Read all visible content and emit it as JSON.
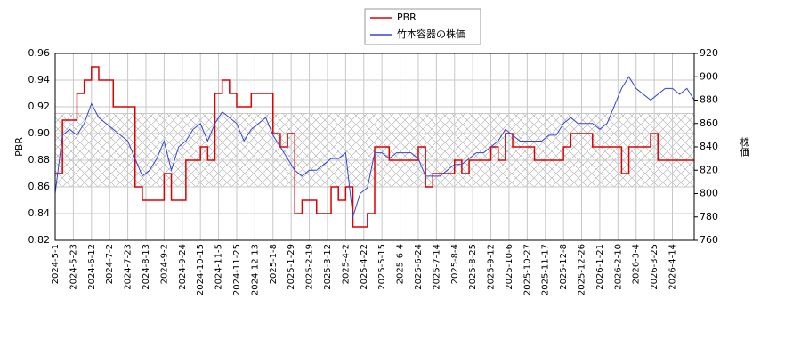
{
  "chart_data": {
    "type": "line",
    "ylabel": "PBR",
    "y2label": "株価",
    "x": [
      0,
      6,
      12,
      18,
      24,
      30,
      36,
      42,
      48,
      54,
      60,
      66,
      72,
      78,
      84,
      90,
      96,
      102,
      108,
      114,
      120,
      126,
      132,
      138,
      144,
      150,
      156,
      162,
      168,
      174,
      180,
      186,
      192,
      198,
      204,
      210,
      216,
      222,
      228,
      234,
      240,
      246,
      252,
      258,
      264,
      270,
      276,
      282,
      288,
      294,
      300,
      306,
      312,
      318,
      324,
      330,
      336,
      342,
      348,
      354,
      360,
      366,
      372,
      378,
      384,
      390,
      396,
      402,
      408,
      414,
      420,
      426,
      432,
      438,
      444,
      450,
      456,
      462,
      468,
      474,
      480,
      486,
      492,
      498,
      504,
      510,
      516,
      522,
      528
    ],
    "xlim": [
      0,
      528
    ],
    "xticks": [
      {
        "value": 0,
        "label": "2024-5-1"
      },
      {
        "value": 15,
        "label": "2024-5-23"
      },
      {
        "value": 30,
        "label": "2024-6-12"
      },
      {
        "value": 45,
        "label": "2024-7-2"
      },
      {
        "value": 60,
        "label": "2024-7-23"
      },
      {
        "value": 75,
        "label": "2024-8-13"
      },
      {
        "value": 90,
        "label": "2024-9-2"
      },
      {
        "value": 105,
        "label": "2024-9-24"
      },
      {
        "value": 120,
        "label": "2024-10-15"
      },
      {
        "value": 135,
        "label": "2024-11-5"
      },
      {
        "value": 150,
        "label": "2024-11-25"
      },
      {
        "value": 165,
        "label": "2024-12-13"
      },
      {
        "value": 180,
        "label": "2025-1-8"
      },
      {
        "value": 195,
        "label": "2025-1-29"
      },
      {
        "value": 210,
        "label": "2025-2-19"
      },
      {
        "value": 225,
        "label": "2025-3-12"
      },
      {
        "value": 240,
        "label": "2025-4-2"
      },
      {
        "value": 255,
        "label": "2025-4-22"
      },
      {
        "value": 270,
        "label": "2025-5-15"
      },
      {
        "value": 285,
        "label": "2025-6-4"
      },
      {
        "value": 300,
        "label": "2025-6-24"
      },
      {
        "value": 315,
        "label": "2025-7-14"
      },
      {
        "value": 330,
        "label": "2025-8-4"
      },
      {
        "value": 345,
        "label": "2025-8-25"
      },
      {
        "value": 360,
        "label": "2025-9-12"
      },
      {
        "value": 375,
        "label": "2025-10-6"
      },
      {
        "value": 390,
        "label": "2025-10-27"
      },
      {
        "value": 405,
        "label": "2025-11-17"
      },
      {
        "value": 420,
        "label": "2025-12-8"
      },
      {
        "value": 435,
        "label": "2025-12-26"
      },
      {
        "value": 450,
        "label": "2026-1-21"
      },
      {
        "value": 465,
        "label": "2026-2-10"
      },
      {
        "value": 480,
        "label": "2026-3-4"
      },
      {
        "value": 495,
        "label": "2026-3-25"
      },
      {
        "value": 510,
        "label": "2026-4-14"
      }
    ],
    "ylim": [
      0.82,
      0.96
    ],
    "yticks": [
      0.82,
      0.84,
      0.86,
      0.88,
      {
        "value": 0.9,
        "label": "0.90"
      },
      0.92,
      0.94,
      0.96
    ],
    "y2lim": [
      760,
      920
    ],
    "y2ticks": [
      760,
      780,
      800,
      820,
      840,
      860,
      880,
      900,
      920
    ],
    "band": [
      0.86,
      0.915
    ],
    "grid": true,
    "legend": "top",
    "series": [
      {
        "name": "PBR",
        "color": "#dd0000",
        "step": true,
        "values": [
          0.87,
          0.91,
          0.91,
          0.93,
          0.94,
          0.95,
          0.94,
          0.94,
          0.92,
          0.92,
          0.92,
          0.86,
          0.85,
          0.85,
          0.85,
          0.87,
          0.85,
          0.85,
          0.88,
          0.88,
          0.89,
          0.88,
          0.93,
          0.94,
          0.93,
          0.92,
          0.92,
          0.93,
          0.93,
          0.93,
          0.9,
          0.89,
          0.9,
          0.84,
          0.85,
          0.85,
          0.84,
          0.84,
          0.86,
          0.85,
          0.86,
          0.83,
          0.83,
          0.84,
          0.89,
          0.89,
          0.88,
          0.88,
          0.88,
          0.88,
          0.89,
          0.86,
          0.87,
          0.87,
          0.87,
          0.88,
          0.87,
          0.88,
          0.88,
          0.88,
          0.89,
          0.88,
          0.9,
          0.89,
          0.89,
          0.89,
          0.88,
          0.88,
          0.88,
          0.88,
          0.89,
          0.9,
          0.9,
          0.9,
          0.89,
          0.89,
          0.89,
          0.89,
          0.87,
          0.89,
          0.89,
          0.89,
          0.9,
          0.88,
          0.88,
          0.88,
          0.88,
          0.88,
          0.88
        ]
      },
      {
        "name": "竹本容器の株価",
        "color": "#3344dd",
        "axis": "y2",
        "values": [
          800,
          850,
          855,
          850,
          860,
          877,
          865,
          860,
          855,
          850,
          845,
          830,
          815,
          820,
          830,
          845,
          820,
          840,
          845,
          855,
          860,
          845,
          860,
          870,
          865,
          860,
          845,
          855,
          860,
          865,
          850,
          840,
          830,
          820,
          815,
          820,
          820,
          825,
          830,
          830,
          835,
          780,
          800,
          805,
          835,
          835,
          830,
          835,
          835,
          835,
          830,
          815,
          815,
          815,
          820,
          825,
          825,
          830,
          835,
          835,
          840,
          845,
          855,
          850,
          845,
          845,
          845,
          845,
          850,
          850,
          860,
          865,
          860,
          860,
          860,
          855,
          860,
          875,
          890,
          900,
          890,
          885,
          880,
          885,
          890,
          890,
          885,
          890,
          880
        ]
      }
    ]
  }
}
